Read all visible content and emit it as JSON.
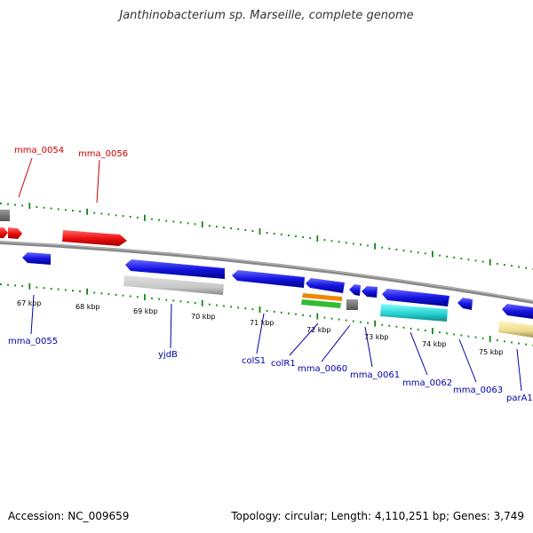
{
  "header": {
    "title": "Janthinobacterium sp. Marseille, complete genome"
  },
  "footer": {
    "accession": "Accession: NC_009659",
    "topology": "Topology: circular; Length: 4,110,251 bp; Genes: 3,749"
  },
  "scale_ticks": [
    "67 kbp",
    "68 kbp",
    "69 kbp",
    "70 kbp",
    "71 kbp",
    "72 kbp",
    "73 kbp",
    "74 kbp",
    "75 kbp"
  ],
  "gene_labels": {
    "forward": [
      "mma_0054",
      "mma_0056"
    ],
    "reverse": [
      "mma_0055",
      "yjdB",
      "colS1",
      "colR1",
      "mma_0060",
      "mma_0061",
      "mma_0062",
      "mma_0063",
      "parA1"
    ]
  },
  "colors": {
    "forward_gene": "#ee1111",
    "reverse_gene": "#1111dd",
    "backbone": "#888888",
    "tick": "#118811",
    "forward_label": "#cc0000",
    "reverse_label": "#0000aa"
  }
}
